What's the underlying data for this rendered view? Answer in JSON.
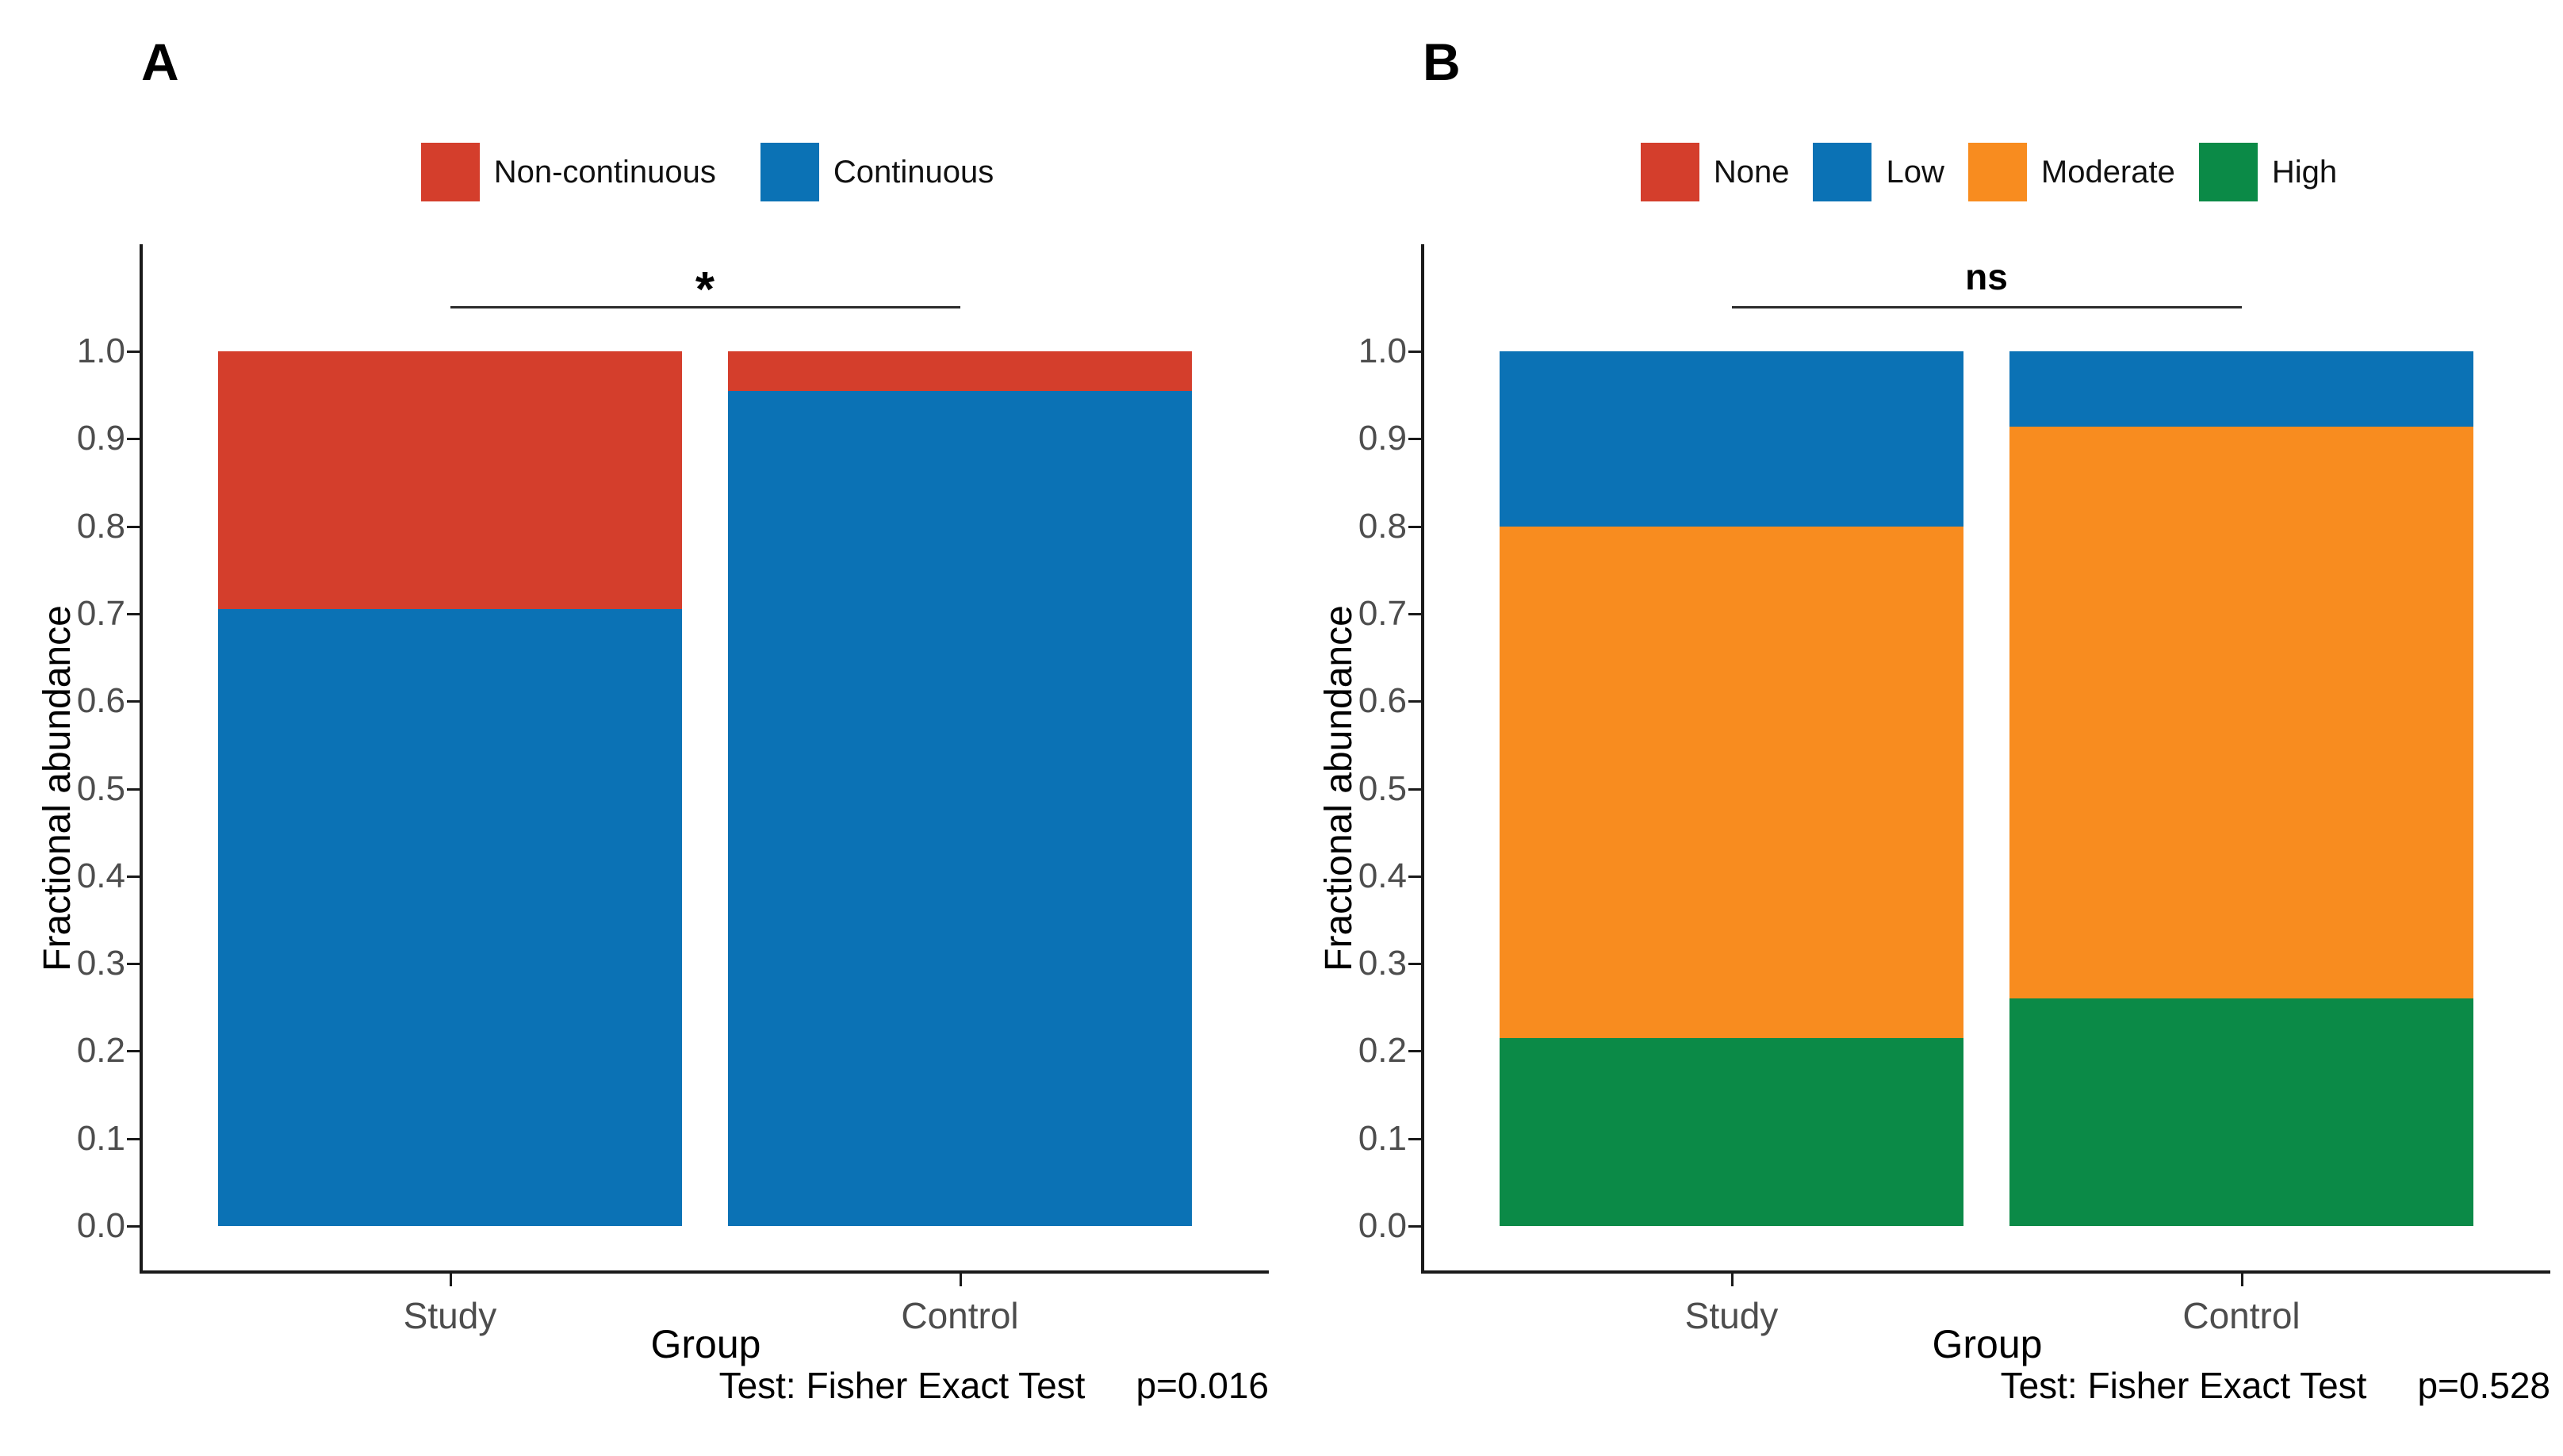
{
  "page": {
    "background": "#ffffff"
  },
  "colors": {
    "red": "#d43e2c",
    "blue": "#0b72b5",
    "orange": "#f88c1f",
    "green": "#0b8a47",
    "axis": "#1a1a1a",
    "tick_text": "#4d4d4d",
    "sig_line": "#2b2b2b"
  },
  "chart_data": [
    {
      "type": "bar",
      "stacked": true,
      "panel_label": "A",
      "categories": [
        "Study",
        "Control"
      ],
      "series": [
        {
          "name": "Continuous",
          "color_key": "blue",
          "values": [
            0.705,
            0.955
          ]
        },
        {
          "name": "Non-continuous",
          "color_key": "red",
          "values": [
            0.295,
            0.045
          ]
        }
      ],
      "legend": [
        {
          "label": "Non-continuous",
          "color_key": "red"
        },
        {
          "label": "Continuous",
          "color_key": "blue"
        }
      ],
      "ylabel": "Fractional abundance",
      "xlabel": "Group",
      "ylim": [
        0,
        1
      ],
      "yticks": [
        "0.0",
        "0.1",
        "0.2",
        "0.3",
        "0.4",
        "0.5",
        "0.6",
        "0.7",
        "0.8",
        "0.9",
        "1.0"
      ],
      "grid": false,
      "legend_position": "top",
      "significance": "*",
      "caption_test": "Test: Fisher Exact Test",
      "caption_p": "p=0.016"
    },
    {
      "type": "bar",
      "stacked": true,
      "panel_label": "B",
      "categories": [
        "Study",
        "Control"
      ],
      "series": [
        {
          "name": "High",
          "color_key": "green",
          "values": [
            0.215,
            0.26
          ]
        },
        {
          "name": "Moderate",
          "color_key": "orange",
          "values": [
            0.585,
            0.654
          ]
        },
        {
          "name": "Low",
          "color_key": "blue",
          "values": [
            0.2,
            0.086
          ]
        },
        {
          "name": "None",
          "color_key": "red",
          "values": [
            0.0,
            0.0
          ]
        }
      ],
      "legend": [
        {
          "label": "None",
          "color_key": "red"
        },
        {
          "label": "Low",
          "color_key": "blue"
        },
        {
          "label": "Moderate",
          "color_key": "orange"
        },
        {
          "label": "High",
          "color_key": "green"
        }
      ],
      "ylabel": "Fractional abundance",
      "xlabel": "Group",
      "ylim": [
        0,
        1
      ],
      "yticks": [
        "0.0",
        "0.1",
        "0.2",
        "0.3",
        "0.4",
        "0.5",
        "0.6",
        "0.7",
        "0.8",
        "0.9",
        "1.0"
      ],
      "grid": false,
      "legend_position": "top",
      "significance": "ns",
      "caption_test": "Test: Fisher Exact Test",
      "caption_p": "p=0.528"
    }
  ]
}
